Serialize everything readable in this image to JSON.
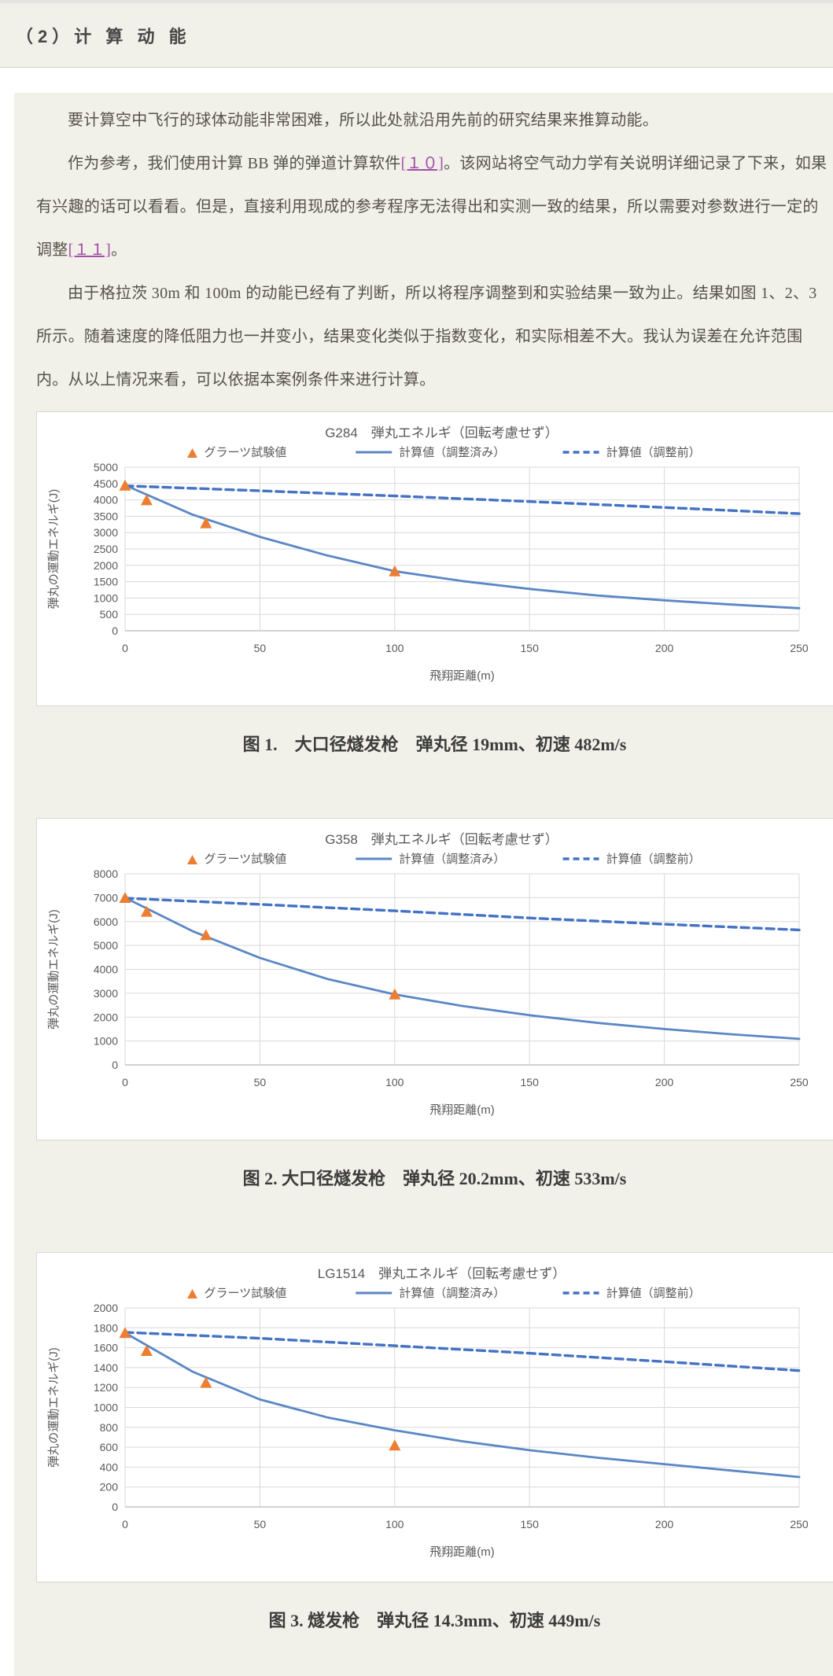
{
  "page": {
    "header": {
      "title": "（2）计 算 动 能"
    },
    "paragraphs": {
      "p1": "要计算空中飞行的球体动能非常困难，所以此处就沿用先前的研究结果来推算动能。",
      "p2_a": "作为参考，我们使用计算 BB 弹的弹道计算软件",
      "p2_link1": "[１０]",
      "p2_b": "。该网站将空气动力学有关说明详细记录了下来，如果有兴趣的话可以看看。但是，直接利用现成的参考程序无法得出和实测一致的结果，所以需要对参数进行一定的调整",
      "p2_link2": "[１１]",
      "p2_c": "。",
      "p3": "由于格拉茨 30m 和 100m 的动能已经有了判断，所以将程序调整到和实验结果一致为止。结果如图 1、2、3 所示。随着速度的降低阻力也一并变小，结果变化类似于指数变化，和实际相差不大。我认为误差在允许范围内。从以上情况来看，可以依据本案例条件来进行计算。"
    },
    "captions": {
      "fig1": "图 1.　大口径燧发枪　弹丸径 19mm、初速 482m/s",
      "fig2": "图 2. 大口径燧发枪　弹丸径 20.2mm、初速 533m/s",
      "fig3": "图 3. 燧发枪　弹丸径 14.3mm、初速 449m/s"
    },
    "colors": {
      "marker_orange": "#ED7D31",
      "line_solid_blue": "#5B87C5",
      "line_dashed_blue": "#4472C4",
      "link_purple": "#A24FA6",
      "panel_beige": "#F1F0E9"
    }
  },
  "chart_data": [
    {
      "type": "line",
      "title": "G284　弾丸エネルギ（回転考慮せず）",
      "xlabel": "飛翔距離(m)",
      "ylabel": "弾丸の運動エネルギ(J)",
      "xlim": [
        0,
        250
      ],
      "xstep": 50,
      "ylim": [
        0,
        5000
      ],
      "ystep": 500,
      "grid": true,
      "legend_position": "top",
      "legend": [
        "グラーツ試験値",
        "計算値（調整済み）",
        "計算値（調整前）"
      ],
      "scatter": {
        "name": "グラーツ試験値",
        "color": "#ED7D31",
        "points": [
          [
            0,
            4430
          ],
          [
            8,
            3980
          ],
          [
            30,
            3280
          ],
          [
            100,
            1810
          ]
        ]
      },
      "series": [
        {
          "name": "計算値（調整済み）",
          "style": "solid",
          "color": "#5B87C5",
          "x": [
            0,
            25,
            50,
            75,
            100,
            125,
            150,
            175,
            200,
            225,
            250
          ],
          "y": [
            4450,
            3550,
            2870,
            2300,
            1820,
            1520,
            1280,
            1080,
            930,
            800,
            690
          ]
        },
        {
          "name": "計算値（調整前）",
          "style": "dashed",
          "color": "#4472C4",
          "x": [
            0,
            50,
            100,
            150,
            200,
            250
          ],
          "y": [
            4430,
            4280,
            4120,
            3950,
            3770,
            3580
          ]
        }
      ]
    },
    {
      "type": "line",
      "title": "G358　弾丸エネルギ（回転考慮せず）",
      "xlabel": "飛翔距離(m)",
      "ylabel": "弾丸の運動エネルギ(J)",
      "xlim": [
        0,
        250
      ],
      "xstep": 50,
      "ylim": [
        0,
        8000
      ],
      "ystep": 1000,
      "grid": true,
      "legend_position": "top",
      "legend": [
        "グラーツ試験値",
        "計算値（調整済み）",
        "計算値（調整前）"
      ],
      "scatter": {
        "name": "グラーツ試験値",
        "color": "#ED7D31",
        "points": [
          [
            0,
            6980
          ],
          [
            8,
            6400
          ],
          [
            30,
            5420
          ],
          [
            100,
            2940
          ]
        ]
      },
      "series": [
        {
          "name": "計算値（調整済み）",
          "style": "solid",
          "color": "#5B87C5",
          "x": [
            0,
            25,
            50,
            75,
            100,
            125,
            150,
            175,
            200,
            225,
            250
          ],
          "y": [
            7000,
            5600,
            4480,
            3600,
            2950,
            2470,
            2080,
            1760,
            1500,
            1280,
            1090
          ]
        },
        {
          "name": "計算値（調整前）",
          "style": "dashed",
          "color": "#4472C4",
          "x": [
            0,
            50,
            100,
            150,
            200,
            250
          ],
          "y": [
            6980,
            6720,
            6450,
            6150,
            5890,
            5650
          ]
        }
      ]
    },
    {
      "type": "line",
      "title": "LG1514　弾丸エネルギ（回転考慮せず）",
      "xlabel": "飛翔距離(m)",
      "ylabel": "弾丸の運動エネルギ(J)",
      "xlim": [
        0,
        250
      ],
      "xstep": 50,
      "ylim": [
        0,
        2000
      ],
      "ystep": 200,
      "grid": true,
      "legend_position": "top",
      "legend": [
        "グラーツ試験値",
        "計算値（調整済み）",
        "計算値（調整前）"
      ],
      "scatter": {
        "name": "グラーツ試験値",
        "color": "#ED7D31",
        "points": [
          [
            0,
            1745
          ],
          [
            8,
            1565
          ],
          [
            30,
            1245
          ],
          [
            100,
            615
          ]
        ]
      },
      "series": [
        {
          "name": "計算値（調整済み）",
          "style": "solid",
          "color": "#5B87C5",
          "x": [
            0,
            25,
            50,
            75,
            100,
            125,
            150,
            175,
            200,
            225,
            250
          ],
          "y": [
            1750,
            1360,
            1080,
            900,
            770,
            660,
            570,
            495,
            430,
            365,
            300
          ]
        },
        {
          "name": "計算値（調整前）",
          "style": "dashed",
          "color": "#4472C4",
          "x": [
            0,
            50,
            100,
            150,
            200,
            250
          ],
          "y": [
            1755,
            1695,
            1620,
            1545,
            1460,
            1370
          ]
        }
      ]
    }
  ]
}
